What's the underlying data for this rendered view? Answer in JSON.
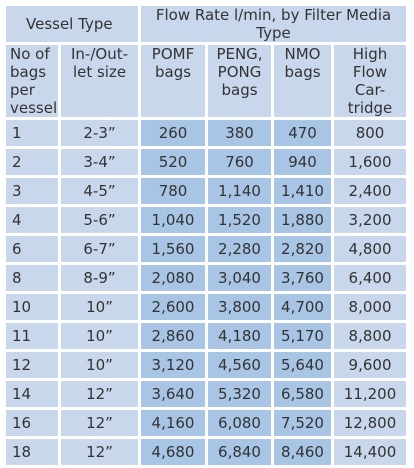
{
  "super_headers": {
    "vessel_type": "Vessel Type",
    "flow_rate": "Flow Rate l/min, by Filter Media Type"
  },
  "columns": [
    "No of bags per vessel",
    "In-/Out- let size",
    "POMF bags",
    "PENG, PONG bags",
    "NMO bags",
    "High Flow Car- tridge"
  ],
  "column_lines": [
    [
      "No of",
      "bags",
      "per",
      "vessel"
    ],
    [
      "In-/Out-",
      "let size"
    ],
    [
      "POMF",
      "bags"
    ],
    [
      "PENG,",
      "PONG",
      "bags"
    ],
    [
      "NMO",
      "bags"
    ],
    [
      "High",
      "Flow",
      "Car-",
      "tridge"
    ]
  ],
  "rows": [
    [
      "1",
      "2-3”",
      "260",
      "380",
      "470",
      "800"
    ],
    [
      "2",
      "3-4”",
      "520",
      "760",
      "940",
      "1,600"
    ],
    [
      "3",
      "4-5”",
      "780",
      "1,140",
      "1,410",
      "2,400"
    ],
    [
      "4",
      "5-6”",
      "1,040",
      "1,520",
      "1,880",
      "3,200"
    ],
    [
      "6",
      "6-7”",
      "1,560",
      "2,280",
      "2,820",
      "4,800"
    ],
    [
      "8",
      "8-9”",
      "2,080",
      "3,040",
      "3,760",
      "6,400"
    ],
    [
      "10",
      "10”",
      "2,600",
      "3,800",
      "4,700",
      "8,000"
    ],
    [
      "11",
      "10”",
      "2,860",
      "4,180",
      "5,170",
      "8,800"
    ],
    [
      "12",
      "10”",
      "3,120",
      "4,560",
      "5,640",
      "9,600"
    ],
    [
      "14",
      "12”",
      "3,640",
      "5,320",
      "6,580",
      "11,200"
    ],
    [
      "16",
      "12”",
      "4,160",
      "6,080",
      "7,520",
      "12,800"
    ],
    [
      "18",
      "12”",
      "4,680",
      "6,840",
      "8,460",
      "14,400"
    ]
  ],
  "colors": {
    "light_band": "#c9d7ed",
    "mid_band": "#a9c5e6",
    "text": "#333333",
    "gap": "#ffffff"
  }
}
